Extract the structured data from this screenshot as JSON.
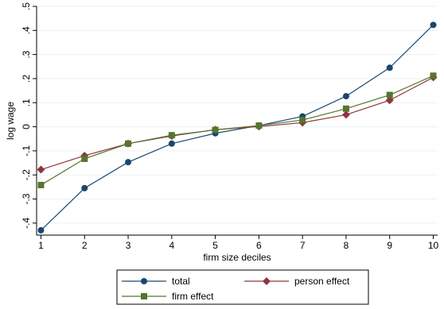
{
  "chart_data": {
    "type": "line",
    "title": "",
    "xlabel": "firm size deciles",
    "ylabel": "log wage",
    "x": [
      1,
      2,
      3,
      4,
      5,
      6,
      7,
      8,
      9,
      10
    ],
    "x_tick_labels": [
      "1",
      "2",
      "3",
      "4",
      "5",
      "6",
      "7",
      "8",
      "9",
      "10"
    ],
    "y_tick_values": [
      -0.4,
      -0.3,
      -0.2,
      -0.1,
      0,
      0.1,
      0.2,
      0.3,
      0.4,
      0.5
    ],
    "y_tick_labels": [
      "-.4",
      "-.3",
      "-.2",
      "-.1",
      "0",
      ".1",
      ".2",
      ".3",
      ".4",
      ".5"
    ],
    "xlim": [
      0.9,
      10.1
    ],
    "ylim": [
      -0.45,
      0.5
    ],
    "grid": "horizontal",
    "legend_position": "bottom",
    "series": [
      {
        "name": "total",
        "color": "#1a476f",
        "marker": "circle",
        "values": [
          -0.43,
          -0.255,
          -0.147,
          -0.07,
          -0.027,
          0.005,
          0.043,
          0.127,
          0.245,
          0.423
        ]
      },
      {
        "name": "person effect",
        "color": "#90353b",
        "marker": "diamond",
        "values": [
          -0.178,
          -0.12,
          -0.07,
          -0.038,
          -0.012,
          0.001,
          0.017,
          0.05,
          0.11,
          0.205
        ]
      },
      {
        "name": "firm effect",
        "color": "#55752f",
        "marker": "square",
        "values": [
          -0.242,
          -0.133,
          -0.07,
          -0.035,
          -0.013,
          0.005,
          0.028,
          0.075,
          0.132,
          0.212
        ]
      }
    ]
  }
}
